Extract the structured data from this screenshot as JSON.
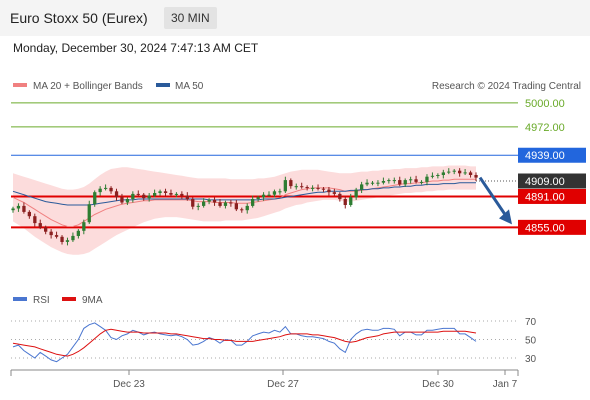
{
  "header": {
    "title": "Euro Stoxx 50 (Eurex)",
    "timeframe": "30 MIN"
  },
  "datetime": "Monday, December 30, 2024 7:47:13 AM CET",
  "legend": {
    "ma20": "MA 20 + Bollinger Bands",
    "ma50": "MA 50",
    "credit": "Research © 2024 Trading Central"
  },
  "colors": {
    "ma20": "#f08080",
    "ma50": "#2a5a9a",
    "bands_fill": "#fbd6d6",
    "resistance": "#6aaa2a",
    "support": "#e00000",
    "pivot": "#2266dd",
    "rsi": "#4a76d0",
    "rsi_ma": "#dd1111",
    "candle_up": "#2e7d32",
    "candle_down": "#8b2020"
  },
  "chart_data": [
    {
      "type": "line",
      "x": [
        "Dec 23",
        "Dec 27",
        "Dec 30",
        "Jan 7"
      ],
      "ylim": [
        4810,
        5008
      ],
      "current_price": "4909.00",
      "levels": [
        {
          "label": "5000.00",
          "value": 5000,
          "kind": "resistance"
        },
        {
          "label": "4972.00",
          "value": 4972,
          "kind": "resistance"
        },
        {
          "label": "4939.00",
          "value": 4939,
          "kind": "pivot"
        },
        {
          "label": "4891.00",
          "value": 4891,
          "kind": "support"
        },
        {
          "label": "4855.00",
          "value": 4855,
          "kind": "support"
        }
      ],
      "series": [
        {
          "name": "MA 20 + Bollinger Bands"
        },
        {
          "name": "MA 50"
        }
      ],
      "candle_closes": [
        4877,
        4880,
        4873,
        4868,
        4860,
        4855,
        4850,
        4846,
        4844,
        4838,
        4840,
        4845,
        4851,
        4861,
        4882,
        4896,
        4900,
        4901,
        4897,
        4890,
        4884,
        4888,
        4894,
        4893,
        4889,
        4892,
        4895,
        4897,
        4895,
        4893,
        4894,
        4892,
        4888,
        4879,
        4880,
        4885,
        4887,
        4884,
        4880,
        4884,
        4883,
        4876,
        4875,
        4880,
        4888,
        4890,
        4893,
        4893,
        4897,
        4897,
        4910,
        4903,
        4903,
        4902,
        4901,
        4901,
        4900,
        4899,
        4896,
        4894,
        4888,
        4881,
        4890,
        4899,
        4905,
        4907,
        4907,
        4907,
        4909,
        4910,
        4910,
        4905,
        4910,
        4911,
        4908,
        4908,
        4914,
        4915,
        4916,
        4919,
        4920,
        4921,
        4918,
        4919,
        4916,
        4913
      ],
      "ma20": [
        4890,
        4887,
        4884,
        4880,
        4876,
        4872,
        4868,
        4864,
        4861,
        4858,
        4856,
        4856,
        4858,
        4862,
        4866,
        4870,
        4873,
        4876,
        4878,
        4880,
        4882,
        4883,
        4884,
        4885,
        4886,
        4886,
        4887,
        4887,
        4887,
        4887,
        4887,
        4887,
        4887,
        4886,
        4885,
        4885,
        4885,
        4884,
        4884,
        4884,
        4884,
        4883,
        4883,
        4883,
        4884,
        4885,
        4886,
        4887,
        4888,
        4889,
        4893,
        4895,
        4897,
        4899,
        4900,
        4901,
        4901,
        4901,
        4901,
        4900,
        4899,
        4897,
        4897,
        4897,
        4898,
        4899,
        4900,
        4901,
        4902,
        4903,
        4904,
        4905,
        4906,
        4906,
        4907,
        4907,
        4908,
        4909,
        4909,
        4910,
        4910,
        4911,
        4911,
        4911,
        4911,
        4911
      ],
      "ma50": [
        4897,
        4895,
        4893,
        4891,
        4889,
        4887,
        4885,
        4884,
        4883,
        4882,
        4881,
        4881,
        4881,
        4881,
        4881,
        4882,
        4883,
        4884,
        4885,
        4886,
        4887,
        4887,
        4887,
        4888,
        4888,
        4888,
        4888,
        4888,
        4888,
        4888,
        4888,
        4888,
        4888,
        4888,
        4888,
        4888,
        4887,
        4887,
        4887,
        4887,
        4887,
        4887,
        4887,
        4887,
        4887,
        4887,
        4888,
        4888,
        4888,
        4889,
        4890,
        4891,
        4892,
        4893,
        4894,
        4895,
        4896,
        4896,
        4897,
        4897,
        4897,
        4897,
        4898,
        4898,
        4899,
        4899,
        4900,
        4900,
        4901,
        4901,
        4902,
        4902,
        4903,
        4903,
        4904,
        4904,
        4905,
        4905,
        4905,
        4906,
        4906,
        4906,
        4907,
        4907,
        4907,
        4907
      ],
      "bb_upper": [
        4918,
        4916,
        4914,
        4912,
        4910,
        4908,
        4906,
        4904,
        4902,
        4900,
        4899,
        4899,
        4900,
        4902,
        4906,
        4911,
        4916,
        4920,
        4923,
        4924,
        4925,
        4925,
        4924,
        4923,
        4922,
        4921,
        4920,
        4919,
        4918,
        4917,
        4916,
        4915,
        4914,
        4913,
        4912,
        4912,
        4912,
        4912,
        4912,
        4912,
        4911,
        4911,
        4911,
        4911,
        4911,
        4912,
        4912,
        4913,
        4914,
        4916,
        4918,
        4920,
        4921,
        4922,
        4922,
        4922,
        4922,
        4921,
        4920,
        4919,
        4918,
        4918,
        4918,
        4919,
        4920,
        4920,
        4921,
        4921,
        4922,
        4922,
        4923,
        4923,
        4924,
        4924,
        4924,
        4925,
        4925,
        4926,
        4926,
        4926,
        4927,
        4927,
        4927,
        4927,
        4926,
        4926
      ],
      "bb_lower": [
        4862,
        4858,
        4854,
        4849,
        4844,
        4840,
        4836,
        4832,
        4829,
        4826,
        4824,
        4823,
        4823,
        4824,
        4826,
        4830,
        4834,
        4838,
        4842,
        4846,
        4849,
        4852,
        4855,
        4858,
        4861,
        4863,
        4865,
        4866,
        4867,
        4867,
        4867,
        4866,
        4865,
        4864,
        4863,
        4862,
        4862,
        4862,
        4862,
        4863,
        4863,
        4863,
        4863,
        4864,
        4865,
        4866,
        4868,
        4870,
        4872,
        4874,
        4877,
        4879,
        4881,
        4882,
        4884,
        4885,
        4886,
        4887,
        4887,
        4887,
        4886,
        4885,
        4885,
        4886,
        4887,
        4888,
        4889,
        4890,
        4891,
        4892,
        4893,
        4894,
        4895,
        4895,
        4896,
        4896,
        4897,
        4897,
        4898,
        4898,
        4899,
        4899,
        4899,
        4899,
        4899,
        4899
      ]
    },
    {
      "type": "line",
      "ylim": [
        20,
        80
      ],
      "yticks": [
        "70",
        "50",
        "30"
      ],
      "series": [
        {
          "name": "RSI",
          "values": [
            42,
            44,
            38,
            34,
            30,
            36,
            32,
            28,
            26,
            30,
            34,
            42,
            50,
            62,
            66,
            68,
            64,
            60,
            52,
            50,
            54,
            56,
            60,
            58,
            55,
            57,
            58,
            56,
            55,
            54,
            55,
            53,
            50,
            44,
            45,
            48,
            52,
            50,
            46,
            50,
            49,
            44,
            44,
            48,
            54,
            56,
            58,
            57,
            60,
            58,
            64,
            56,
            56,
            54,
            53,
            53,
            52,
            51,
            48,
            46,
            40,
            36,
            50,
            56,
            60,
            61,
            60,
            60,
            62,
            62,
            61,
            54,
            58,
            58,
            55,
            55,
            60,
            60,
            61,
            62,
            62,
            62,
            56,
            56,
            52,
            48
          ]
        },
        {
          "name": "9MA",
          "values": [
            46,
            45,
            44,
            43,
            42,
            40,
            38,
            36,
            34,
            33,
            32,
            34,
            37,
            41,
            46,
            51,
            56,
            60,
            61,
            60,
            59,
            58,
            58,
            58,
            57,
            57,
            57,
            57,
            57,
            56,
            56,
            55,
            54,
            53,
            52,
            51,
            51,
            50,
            50,
            49,
            49,
            48,
            48,
            48,
            48,
            49,
            50,
            51,
            52,
            53,
            55,
            56,
            56,
            56,
            56,
            55,
            55,
            54,
            53,
            52,
            50,
            48,
            47,
            48,
            50,
            52,
            53,
            54,
            56,
            57,
            58,
            58,
            58,
            58,
            58,
            58,
            58,
            58,
            58,
            59,
            59,
            59,
            59,
            59,
            58,
            57
          ]
        }
      ]
    }
  ],
  "x_axis": [
    "Dec 23",
    "Dec 27",
    "Dec 30",
    "Jan 7"
  ]
}
